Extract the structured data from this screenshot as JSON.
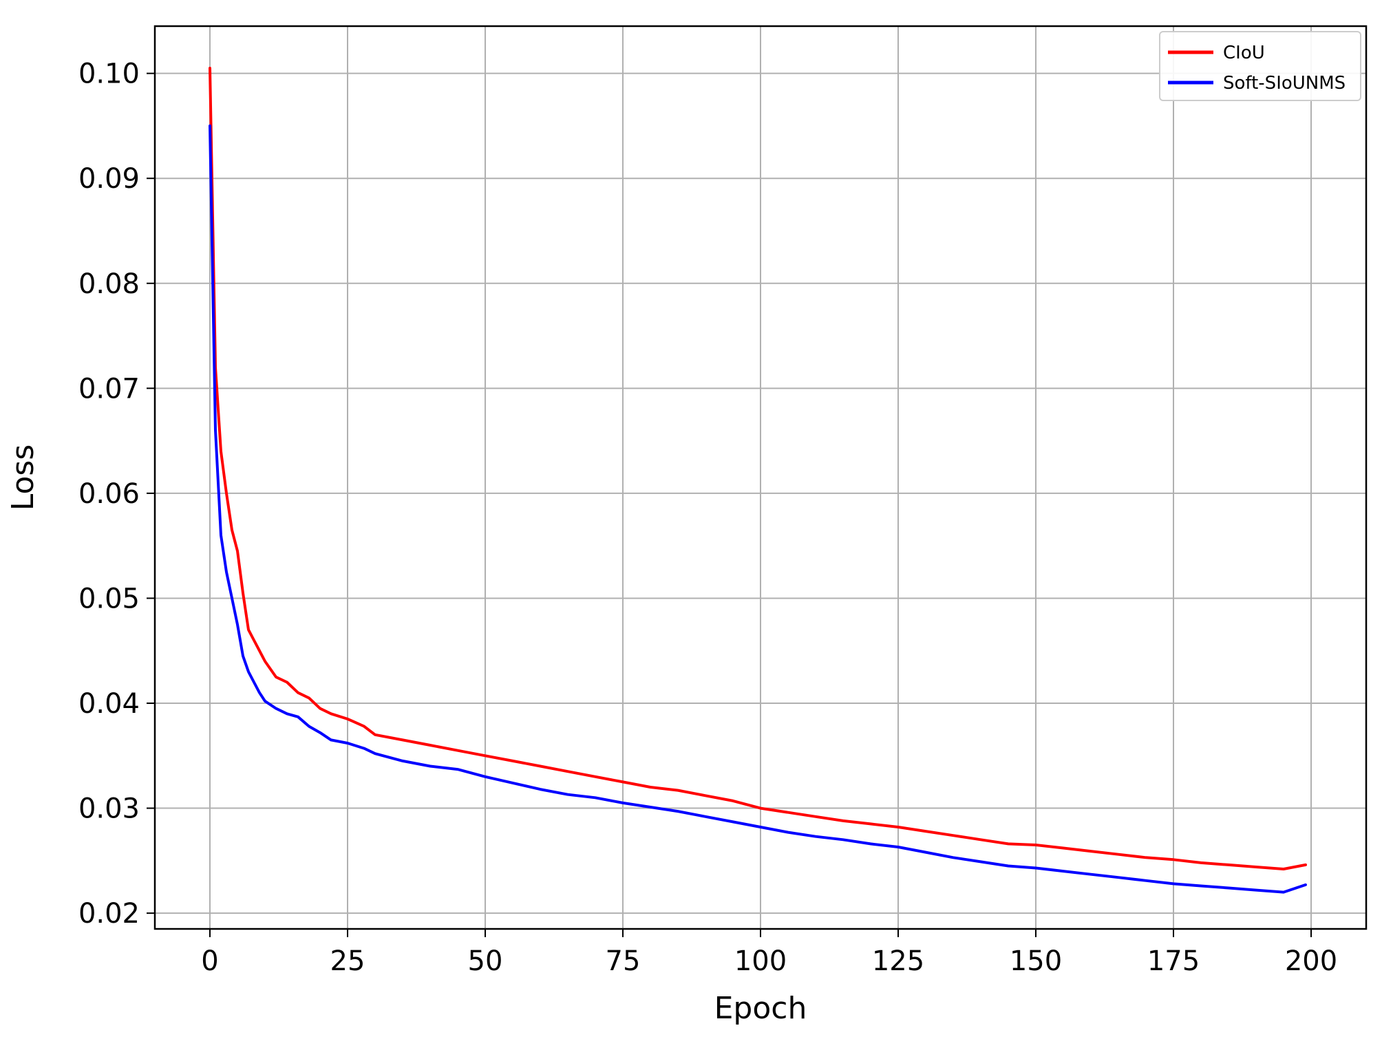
{
  "chart_data": {
    "type": "line",
    "title": "",
    "xlabel": "Epoch",
    "ylabel": "Loss",
    "xlim": [
      -10,
      210
    ],
    "ylim": [
      0.0185,
      0.1045
    ],
    "grid": true,
    "legend_position": "top-right",
    "x_ticks": [
      0,
      25,
      50,
      75,
      100,
      125,
      150,
      175,
      200
    ],
    "x_tick_labels": [
      "0",
      "25",
      "50",
      "75",
      "100",
      "125",
      "150",
      "175",
      "200"
    ],
    "y_ticks": [
      0.02,
      0.03,
      0.04,
      0.05,
      0.06,
      0.07,
      0.08,
      0.09,
      0.1
    ],
    "y_tick_labels": [
      "0.02",
      "0.03",
      "0.04",
      "0.05",
      "0.06",
      "0.07",
      "0.08",
      "0.09",
      "0.10"
    ],
    "series": [
      {
        "name": "CIoU",
        "color": "#ff0000",
        "x": [
          0,
          1,
          2,
          3,
          4,
          5,
          6,
          7,
          8,
          9,
          10,
          12,
          14,
          16,
          18,
          20,
          22,
          25,
          28,
          30,
          35,
          40,
          45,
          50,
          55,
          60,
          65,
          70,
          75,
          80,
          85,
          90,
          95,
          100,
          105,
          110,
          115,
          120,
          125,
          130,
          135,
          140,
          145,
          150,
          155,
          160,
          165,
          170,
          175,
          180,
          185,
          190,
          195,
          199
        ],
        "y": [
          0.1005,
          0.072,
          0.064,
          0.06,
          0.0565,
          0.0545,
          0.0505,
          0.047,
          0.046,
          0.045,
          0.044,
          0.0425,
          0.042,
          0.041,
          0.0405,
          0.0395,
          0.039,
          0.0385,
          0.0378,
          0.037,
          0.0365,
          0.036,
          0.0355,
          0.035,
          0.0345,
          0.034,
          0.0335,
          0.033,
          0.0325,
          0.032,
          0.0317,
          0.0312,
          0.0307,
          0.03,
          0.0296,
          0.0292,
          0.0288,
          0.0285,
          0.0282,
          0.0278,
          0.0274,
          0.027,
          0.0266,
          0.0265,
          0.0262,
          0.0259,
          0.0256,
          0.0253,
          0.0251,
          0.0248,
          0.0246,
          0.0244,
          0.0242,
          0.0246
        ]
      },
      {
        "name": "Soft-SIoUNMS",
        "color": "#0000ff",
        "x": [
          0,
          1,
          2,
          3,
          4,
          5,
          6,
          7,
          8,
          9,
          10,
          12,
          14,
          16,
          18,
          20,
          22,
          25,
          28,
          30,
          35,
          40,
          45,
          50,
          55,
          60,
          65,
          70,
          75,
          80,
          85,
          90,
          95,
          100,
          105,
          110,
          115,
          120,
          125,
          130,
          135,
          140,
          145,
          150,
          155,
          160,
          165,
          170,
          175,
          180,
          185,
          190,
          195,
          199
        ],
        "y": [
          0.095,
          0.066,
          0.056,
          0.0525,
          0.05,
          0.0475,
          0.0445,
          0.043,
          0.042,
          0.041,
          0.0402,
          0.0395,
          0.039,
          0.0387,
          0.0378,
          0.0372,
          0.0365,
          0.0362,
          0.0357,
          0.0352,
          0.0345,
          0.034,
          0.0337,
          0.033,
          0.0324,
          0.0318,
          0.0313,
          0.031,
          0.0305,
          0.0301,
          0.0297,
          0.0292,
          0.0287,
          0.0282,
          0.0277,
          0.0273,
          0.027,
          0.0266,
          0.0263,
          0.0258,
          0.0253,
          0.0249,
          0.0245,
          0.0243,
          0.024,
          0.0237,
          0.0234,
          0.0231,
          0.0228,
          0.0226,
          0.0224,
          0.0222,
          0.022,
          0.0227
        ]
      }
    ]
  }
}
